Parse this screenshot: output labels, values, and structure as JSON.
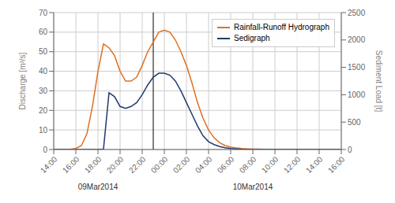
{
  "chart_data": {
    "type": "line",
    "x": [
      0,
      0.5,
      1,
      1.5,
      2,
      2.5,
      3,
      3.5,
      4,
      4.5,
      5,
      5.5,
      6,
      6.5,
      7,
      7.5,
      8,
      8.5,
      9,
      9.5,
      10,
      10.5,
      11,
      11.5,
      12,
      12.5,
      13,
      13.5,
      14,
      14.5,
      15,
      15.5,
      16,
      16.5,
      17,
      17.5,
      18,
      18.5,
      19,
      19.5,
      20,
      20.5,
      21,
      21.5,
      22,
      22.5,
      23,
      23.5,
      24,
      24.5,
      25,
      25.5,
      26
    ],
    "series": [
      {
        "name": "Rainfall-Runoff Hydrograph",
        "color": "#E07020",
        "values": [
          0,
          0,
          0,
          0.1,
          0.5,
          2,
          8,
          22,
          40,
          54,
          52,
          48,
          40,
          35,
          35,
          37,
          43,
          50,
          55,
          60,
          61,
          60,
          56,
          50,
          43,
          34,
          24,
          16,
          10,
          6,
          3.5,
          2,
          1.2,
          0.8,
          0.5,
          0.35,
          0.25,
          0.18,
          0.12,
          0.08,
          0.05,
          0.03,
          0.02,
          0.01,
          0,
          0,
          0,
          0,
          0,
          0,
          0,
          0,
          0
        ]
      },
      {
        "name": "Sedigraph",
        "color": "#1E3A6E",
        "values": [
          0,
          0,
          0,
          0,
          0,
          0,
          0,
          0,
          0,
          0.2,
          29,
          27,
          22,
          21,
          22,
          24,
          28,
          33,
          37,
          39,
          39,
          38,
          35,
          30,
          24,
          18,
          12,
          7,
          4,
          2.5,
          1.5,
          0.9,
          0.5,
          0.3,
          0.15,
          0.08,
          0.04,
          0.02,
          0.01,
          0,
          0,
          0,
          0,
          0,
          0,
          0,
          0,
          0,
          0,
          0,
          0,
          0,
          0
        ]
      }
    ],
    "y_label": "Discharge [m³/s]",
    "y2_label": "Sediment Load [t]",
    "xlim": [
      0,
      26
    ],
    "xticks": [
      {
        "value": 0,
        "label": "14:00"
      },
      {
        "value": 2,
        "label": "16:00"
      },
      {
        "value": 4,
        "label": "18:00"
      },
      {
        "value": 6,
        "label": "20:00"
      },
      {
        "value": 8,
        "label": "22:00"
      },
      {
        "value": 10,
        "label": "00:00"
      },
      {
        "value": 12,
        "label": "02:00"
      },
      {
        "value": 14,
        "label": "04:00"
      },
      {
        "value": 16,
        "label": "06:00"
      },
      {
        "value": 18,
        "label": "08:00"
      },
      {
        "value": 20,
        "label": "10:00"
      },
      {
        "value": 22,
        "label": "12:00"
      },
      {
        "value": 24,
        "label": "14:00"
      },
      {
        "value": 26,
        "label": "16:00"
      }
    ],
    "ylim": [
      0,
      70
    ],
    "yticks": [
      0,
      10,
      20,
      30,
      40,
      50,
      60,
      70
    ],
    "y2lim": [
      0,
      2500
    ],
    "y2ticks": [
      0,
      500,
      1000,
      1500,
      2000,
      2500
    ],
    "separator_x": 9,
    "annotations": [
      {
        "text": "09Mar2014",
        "x": 4
      },
      {
        "text": "10Mar2014",
        "x": 18
      }
    ],
    "grid": true,
    "legend": "upper right"
  }
}
